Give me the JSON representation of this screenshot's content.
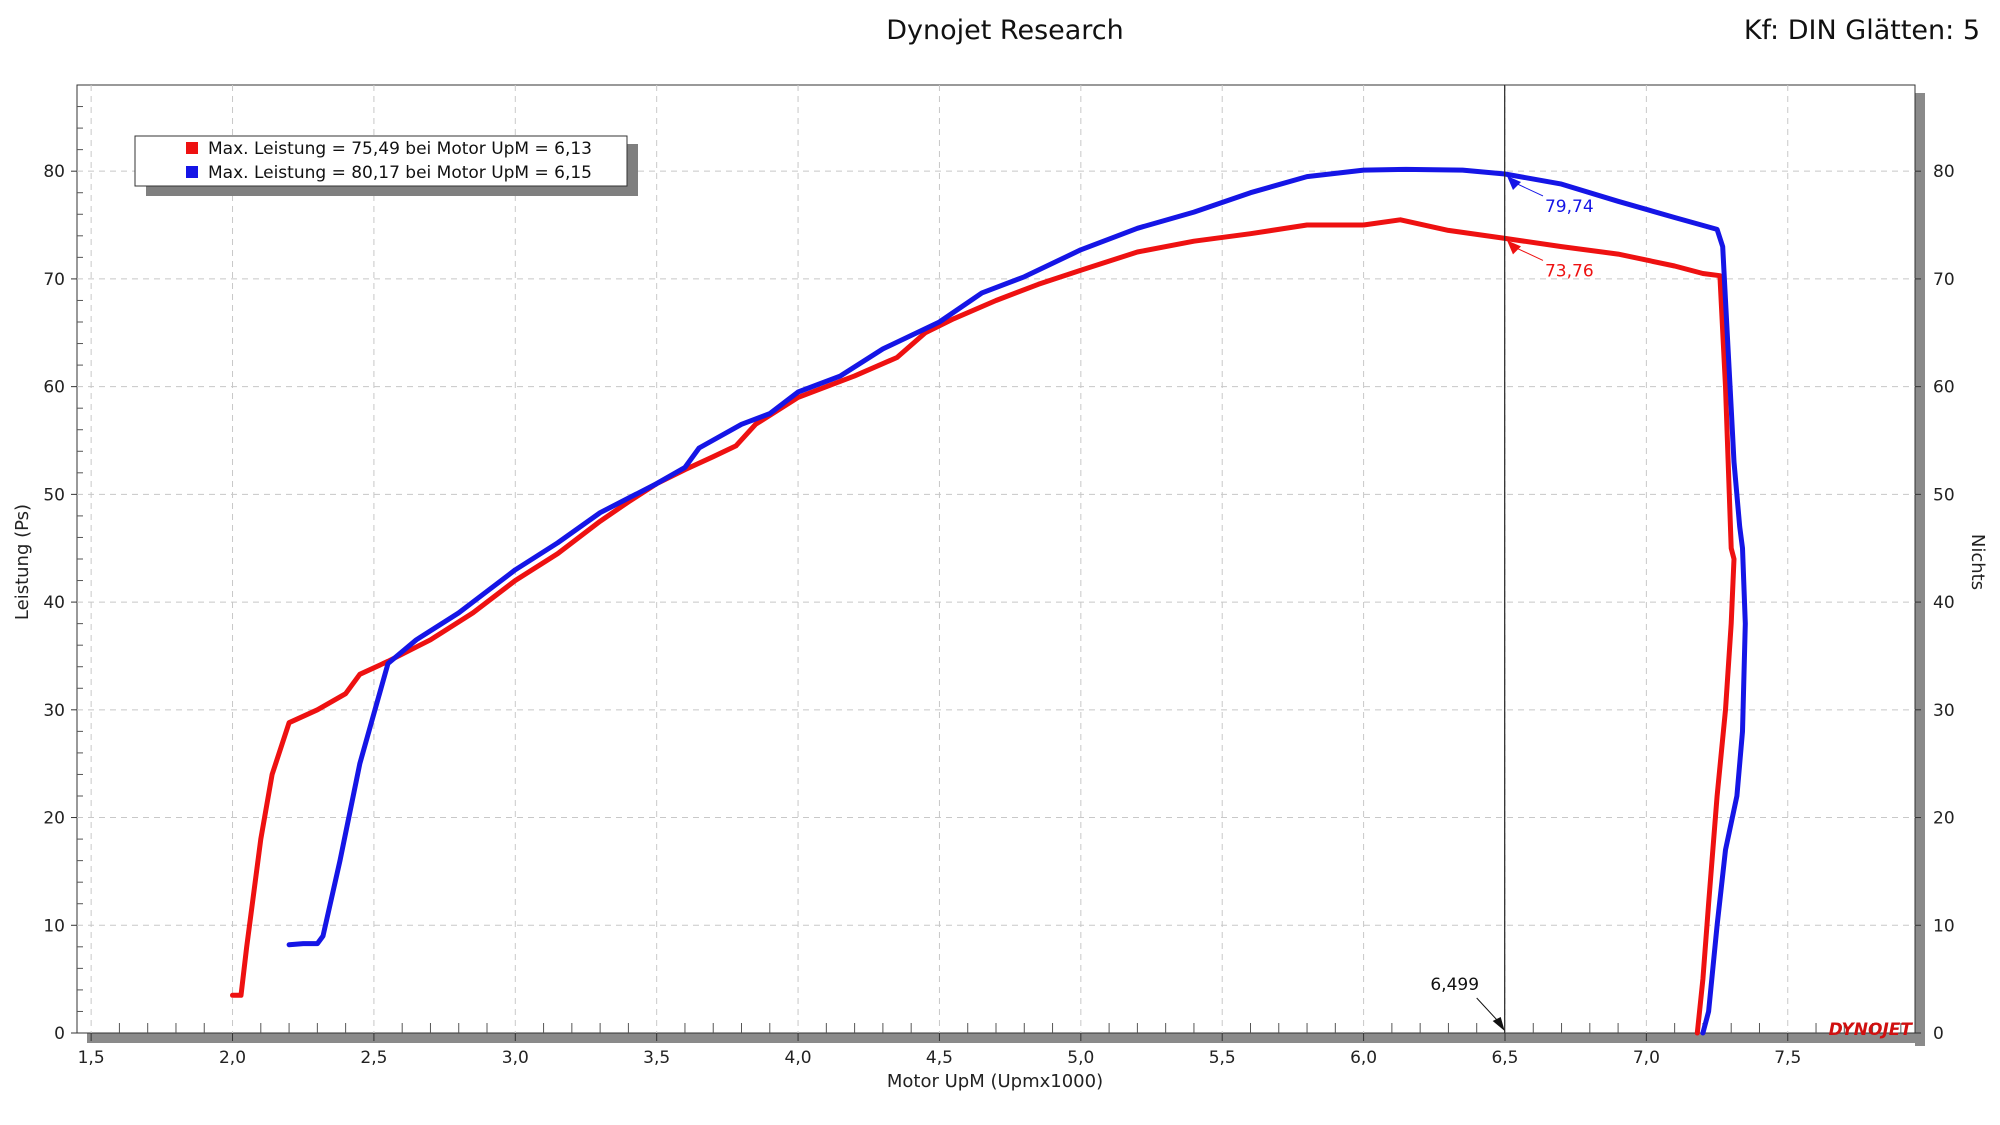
{
  "header": {
    "title": "Dynojet Research",
    "right_info": "Kf: DIN Glätten: 5"
  },
  "logo_text": "DYNOJET",
  "colors": {
    "series_1": "#ee1111",
    "series_2": "#1515e6",
    "grid": "#c8c8c8",
    "frame": "#333333",
    "cursor": "#222222"
  },
  "chart_data": {
    "type": "line",
    "xlabel": "Motor UpM (Upmx1000)",
    "ylabel": "Leistung (Ps)",
    "y2label": "Nichts",
    "xlim": [
      1.45,
      7.95
    ],
    "ylim": [
      0,
      88
    ],
    "x_ticks": [
      "1,5",
      "2,0",
      "2,5",
      "3,0",
      "3,5",
      "4,0",
      "4,5",
      "5,0",
      "5,5",
      "6,0",
      "6,5",
      "7,0",
      "7,5"
    ],
    "x_tick_values": [
      1.5,
      2.0,
      2.5,
      3.0,
      3.5,
      4.0,
      4.5,
      5.0,
      5.5,
      6.0,
      6.5,
      7.0,
      7.5
    ],
    "y_ticks": [
      "0",
      "10",
      "20",
      "30",
      "40",
      "50",
      "60",
      "70",
      "80"
    ],
    "y_tick_values": [
      0,
      10,
      20,
      30,
      40,
      50,
      60,
      70,
      80
    ],
    "grid": true,
    "legend_position": "top-left",
    "legend": [
      "Max. Leistung = 75,49 bei Motor UpM = 6,13",
      "Max. Leistung = 80,17 bei Motor UpM = 6,15"
    ],
    "cursor": {
      "x": 6.499,
      "label": "6,499"
    },
    "annotations": [
      {
        "series": 0,
        "x": 6.5,
        "y": 73.76,
        "label": "73,76"
      },
      {
        "series": 1,
        "x": 6.5,
        "y": 79.74,
        "label": "79,74"
      }
    ],
    "series": [
      {
        "color": "#ee1111",
        "points": [
          [
            2.0,
            3.5
          ],
          [
            2.03,
            3.5
          ],
          [
            2.05,
            8
          ],
          [
            2.1,
            18
          ],
          [
            2.14,
            24
          ],
          [
            2.2,
            28.8
          ],
          [
            2.3,
            30
          ],
          [
            2.4,
            31.5
          ],
          [
            2.45,
            33.3
          ],
          [
            2.55,
            34.5
          ],
          [
            2.7,
            36.5
          ],
          [
            2.85,
            39
          ],
          [
            3.0,
            42
          ],
          [
            3.15,
            44.5
          ],
          [
            3.3,
            47.5
          ],
          [
            3.4,
            49.3
          ],
          [
            3.5,
            51
          ],
          [
            3.6,
            52.3
          ],
          [
            3.7,
            53.5
          ],
          [
            3.78,
            54.5
          ],
          [
            3.85,
            56.5
          ],
          [
            4.0,
            59
          ],
          [
            4.2,
            61
          ],
          [
            4.35,
            62.7
          ],
          [
            4.45,
            65
          ],
          [
            4.55,
            66.3
          ],
          [
            4.7,
            68
          ],
          [
            4.85,
            69.5
          ],
          [
            5.0,
            70.8
          ],
          [
            5.2,
            72.5
          ],
          [
            5.4,
            73.5
          ],
          [
            5.6,
            74.2
          ],
          [
            5.8,
            75
          ],
          [
            6.0,
            75
          ],
          [
            6.13,
            75.49
          ],
          [
            6.3,
            74.5
          ],
          [
            6.5,
            73.76
          ],
          [
            6.7,
            73
          ],
          [
            6.9,
            72.3
          ],
          [
            7.1,
            71.2
          ],
          [
            7.2,
            70.5
          ],
          [
            7.26,
            70.3
          ],
          [
            7.28,
            60
          ],
          [
            7.3,
            45
          ],
          [
            7.31,
            44
          ],
          [
            7.3,
            38
          ],
          [
            7.28,
            30
          ],
          [
            7.25,
            22
          ],
          [
            7.22,
            12
          ],
          [
            7.2,
            5
          ],
          [
            7.18,
            0
          ]
        ]
      },
      {
        "color": "#1515e6",
        "points": [
          [
            2.2,
            8.2
          ],
          [
            2.25,
            8.3
          ],
          [
            2.3,
            8.3
          ],
          [
            2.32,
            9
          ],
          [
            2.38,
            16
          ],
          [
            2.45,
            25
          ],
          [
            2.55,
            34.3
          ],
          [
            2.65,
            36.5
          ],
          [
            2.8,
            39
          ],
          [
            2.9,
            41
          ],
          [
            3.0,
            43
          ],
          [
            3.15,
            45.5
          ],
          [
            3.3,
            48.3
          ],
          [
            3.5,
            51
          ],
          [
            3.6,
            52.5
          ],
          [
            3.65,
            54.3
          ],
          [
            3.8,
            56.5
          ],
          [
            3.9,
            57.5
          ],
          [
            4.0,
            59.5
          ],
          [
            4.15,
            61
          ],
          [
            4.3,
            63.5
          ],
          [
            4.5,
            66
          ],
          [
            4.65,
            68.7
          ],
          [
            4.8,
            70.2
          ],
          [
            5.0,
            72.7
          ],
          [
            5.2,
            74.7
          ],
          [
            5.4,
            76.2
          ],
          [
            5.6,
            78
          ],
          [
            5.8,
            79.5
          ],
          [
            6.0,
            80.1
          ],
          [
            6.15,
            80.17
          ],
          [
            6.35,
            80.1
          ],
          [
            6.5,
            79.74
          ],
          [
            6.7,
            78.8
          ],
          [
            6.9,
            77.2
          ],
          [
            7.1,
            75.7
          ],
          [
            7.25,
            74.6
          ],
          [
            7.27,
            73
          ],
          [
            7.28,
            68
          ],
          [
            7.3,
            58
          ],
          [
            7.31,
            53
          ],
          [
            7.33,
            47
          ],
          [
            7.34,
            45
          ],
          [
            7.35,
            38
          ],
          [
            7.34,
            28
          ],
          [
            7.32,
            22
          ],
          [
            7.28,
            17
          ],
          [
            7.25,
            10
          ],
          [
            7.22,
            2
          ],
          [
            7.2,
            0
          ]
        ]
      }
    ]
  }
}
